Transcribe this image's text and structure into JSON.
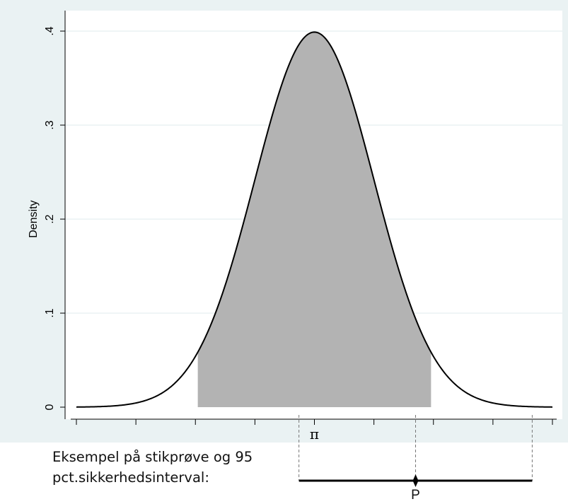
{
  "chart_data": {
    "type": "area",
    "ylabel": "Density",
    "xlim": [
      -4,
      4
    ],
    "ylim": [
      0,
      0.4
    ],
    "yticks": [
      {
        "value": 0,
        "label": "0"
      },
      {
        "value": 0.1,
        "label": ".1"
      },
      {
        "value": 0.2,
        "label": ".2"
      },
      {
        "value": 0.3,
        "label": ".3"
      },
      {
        "value": 0.4,
        "label": ".4"
      }
    ],
    "xticks": [
      -4,
      -3,
      -2,
      -1,
      0,
      1,
      2,
      3,
      4
    ],
    "center_label": "π",
    "series": [
      {
        "distribution": "normal",
        "mean": 0,
        "sd": 1,
        "x_from": -4,
        "x_to": 4,
        "color": "#000000"
      }
    ],
    "shaded_region": {
      "from": -1.96,
      "to": 1.96,
      "color": "#b3b3b3"
    },
    "grid": true,
    "colors": {
      "plot_background": "#ffffff",
      "outer_background": "#eaf2f3",
      "gridline": "#eaf2f3"
    },
    "interval": {
      "point": 1.7,
      "from": -0.26,
      "to": 3.66,
      "point_label": "P",
      "caption_lines": [
        "Eksempel på stikprøve og 95",
        "pct.sikkerhedsinterval:"
      ]
    }
  }
}
